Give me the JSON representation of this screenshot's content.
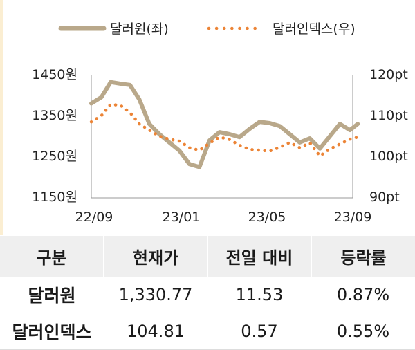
{
  "colors": {
    "usd_krw": "#b9a88a",
    "dollar_index": "#ec8436",
    "accent_bg": "#fbeed2",
    "header_bg": "#efefef"
  },
  "legend": [
    {
      "label": "달러원(좌)",
      "style": "solid"
    },
    {
      "label": "달러인덱스(우)",
      "style": "dotted"
    }
  ],
  "chart_data": {
    "type": "line",
    "x_ticks": [
      "22/09",
      "23/01",
      "23/05",
      "23/09"
    ],
    "x_range": [
      "2022-09",
      "2023-09"
    ],
    "y_left": {
      "ticks": [
        "1450원",
        "1350원",
        "1250원",
        "1150원"
      ],
      "range": [
        1150,
        1450
      ]
    },
    "y_right": {
      "ticks": [
        "120pt",
        "110pt",
        "100pt",
        "90pt"
      ],
      "range": [
        90,
        120
      ]
    },
    "series": [
      {
        "name": "달러원(좌)",
        "axis": "left",
        "x": [
          "2022-09-01",
          "2022-09-15",
          "2022-09-28",
          "2022-10-12",
          "2022-10-25",
          "2022-11-07",
          "2022-11-21",
          "2022-12-05",
          "2022-12-19",
          "2023-01-02",
          "2023-01-16",
          "2023-01-30",
          "2023-02-13",
          "2023-02-27",
          "2023-03-13",
          "2023-03-27",
          "2023-04-10",
          "2023-04-24",
          "2023-05-08",
          "2023-05-22",
          "2023-06-05",
          "2023-06-19",
          "2023-07-03",
          "2023-07-17",
          "2023-07-31",
          "2023-08-14",
          "2023-08-28",
          "2023-09-08"
        ],
        "values": [
          1380,
          1395,
          1432,
          1428,
          1425,
          1390,
          1330,
          1305,
          1285,
          1265,
          1232,
          1225,
          1290,
          1310,
          1305,
          1298,
          1318,
          1335,
          1332,
          1325,
          1305,
          1285,
          1295,
          1270,
          1300,
          1330,
          1315,
          1330
        ]
      },
      {
        "name": "달러인덱스(우)",
        "axis": "right",
        "x": [
          "2022-09-01",
          "2022-09-15",
          "2022-09-28",
          "2022-10-12",
          "2022-10-25",
          "2022-11-07",
          "2022-11-21",
          "2022-12-05",
          "2022-12-19",
          "2023-01-02",
          "2023-01-16",
          "2023-01-30",
          "2023-02-13",
          "2023-02-27",
          "2023-03-13",
          "2023-03-27",
          "2023-04-10",
          "2023-04-24",
          "2023-05-08",
          "2023-05-22",
          "2023-06-05",
          "2023-06-19",
          "2023-07-03",
          "2023-07-17",
          "2023-07-31",
          "2023-08-14",
          "2023-08-28",
          "2023-09-08"
        ],
        "values": [
          108.5,
          110.0,
          112.8,
          112.5,
          110.8,
          108.0,
          106.5,
          105.0,
          104.3,
          103.8,
          102.2,
          101.6,
          103.3,
          104.8,
          104.2,
          102.8,
          101.8,
          101.6,
          101.4,
          102.3,
          103.5,
          102.2,
          103.4,
          100.2,
          101.9,
          103.1,
          104.3,
          104.8
        ]
      }
    ]
  },
  "table": {
    "headers": [
      "구분",
      "현재가",
      "전일 대비",
      "등락률"
    ],
    "rows": [
      [
        "달러원",
        "1,330.77",
        "11.53",
        "0.87%"
      ],
      [
        "달러인덱스",
        "104.81",
        "0.57",
        "0.55%"
      ]
    ]
  }
}
